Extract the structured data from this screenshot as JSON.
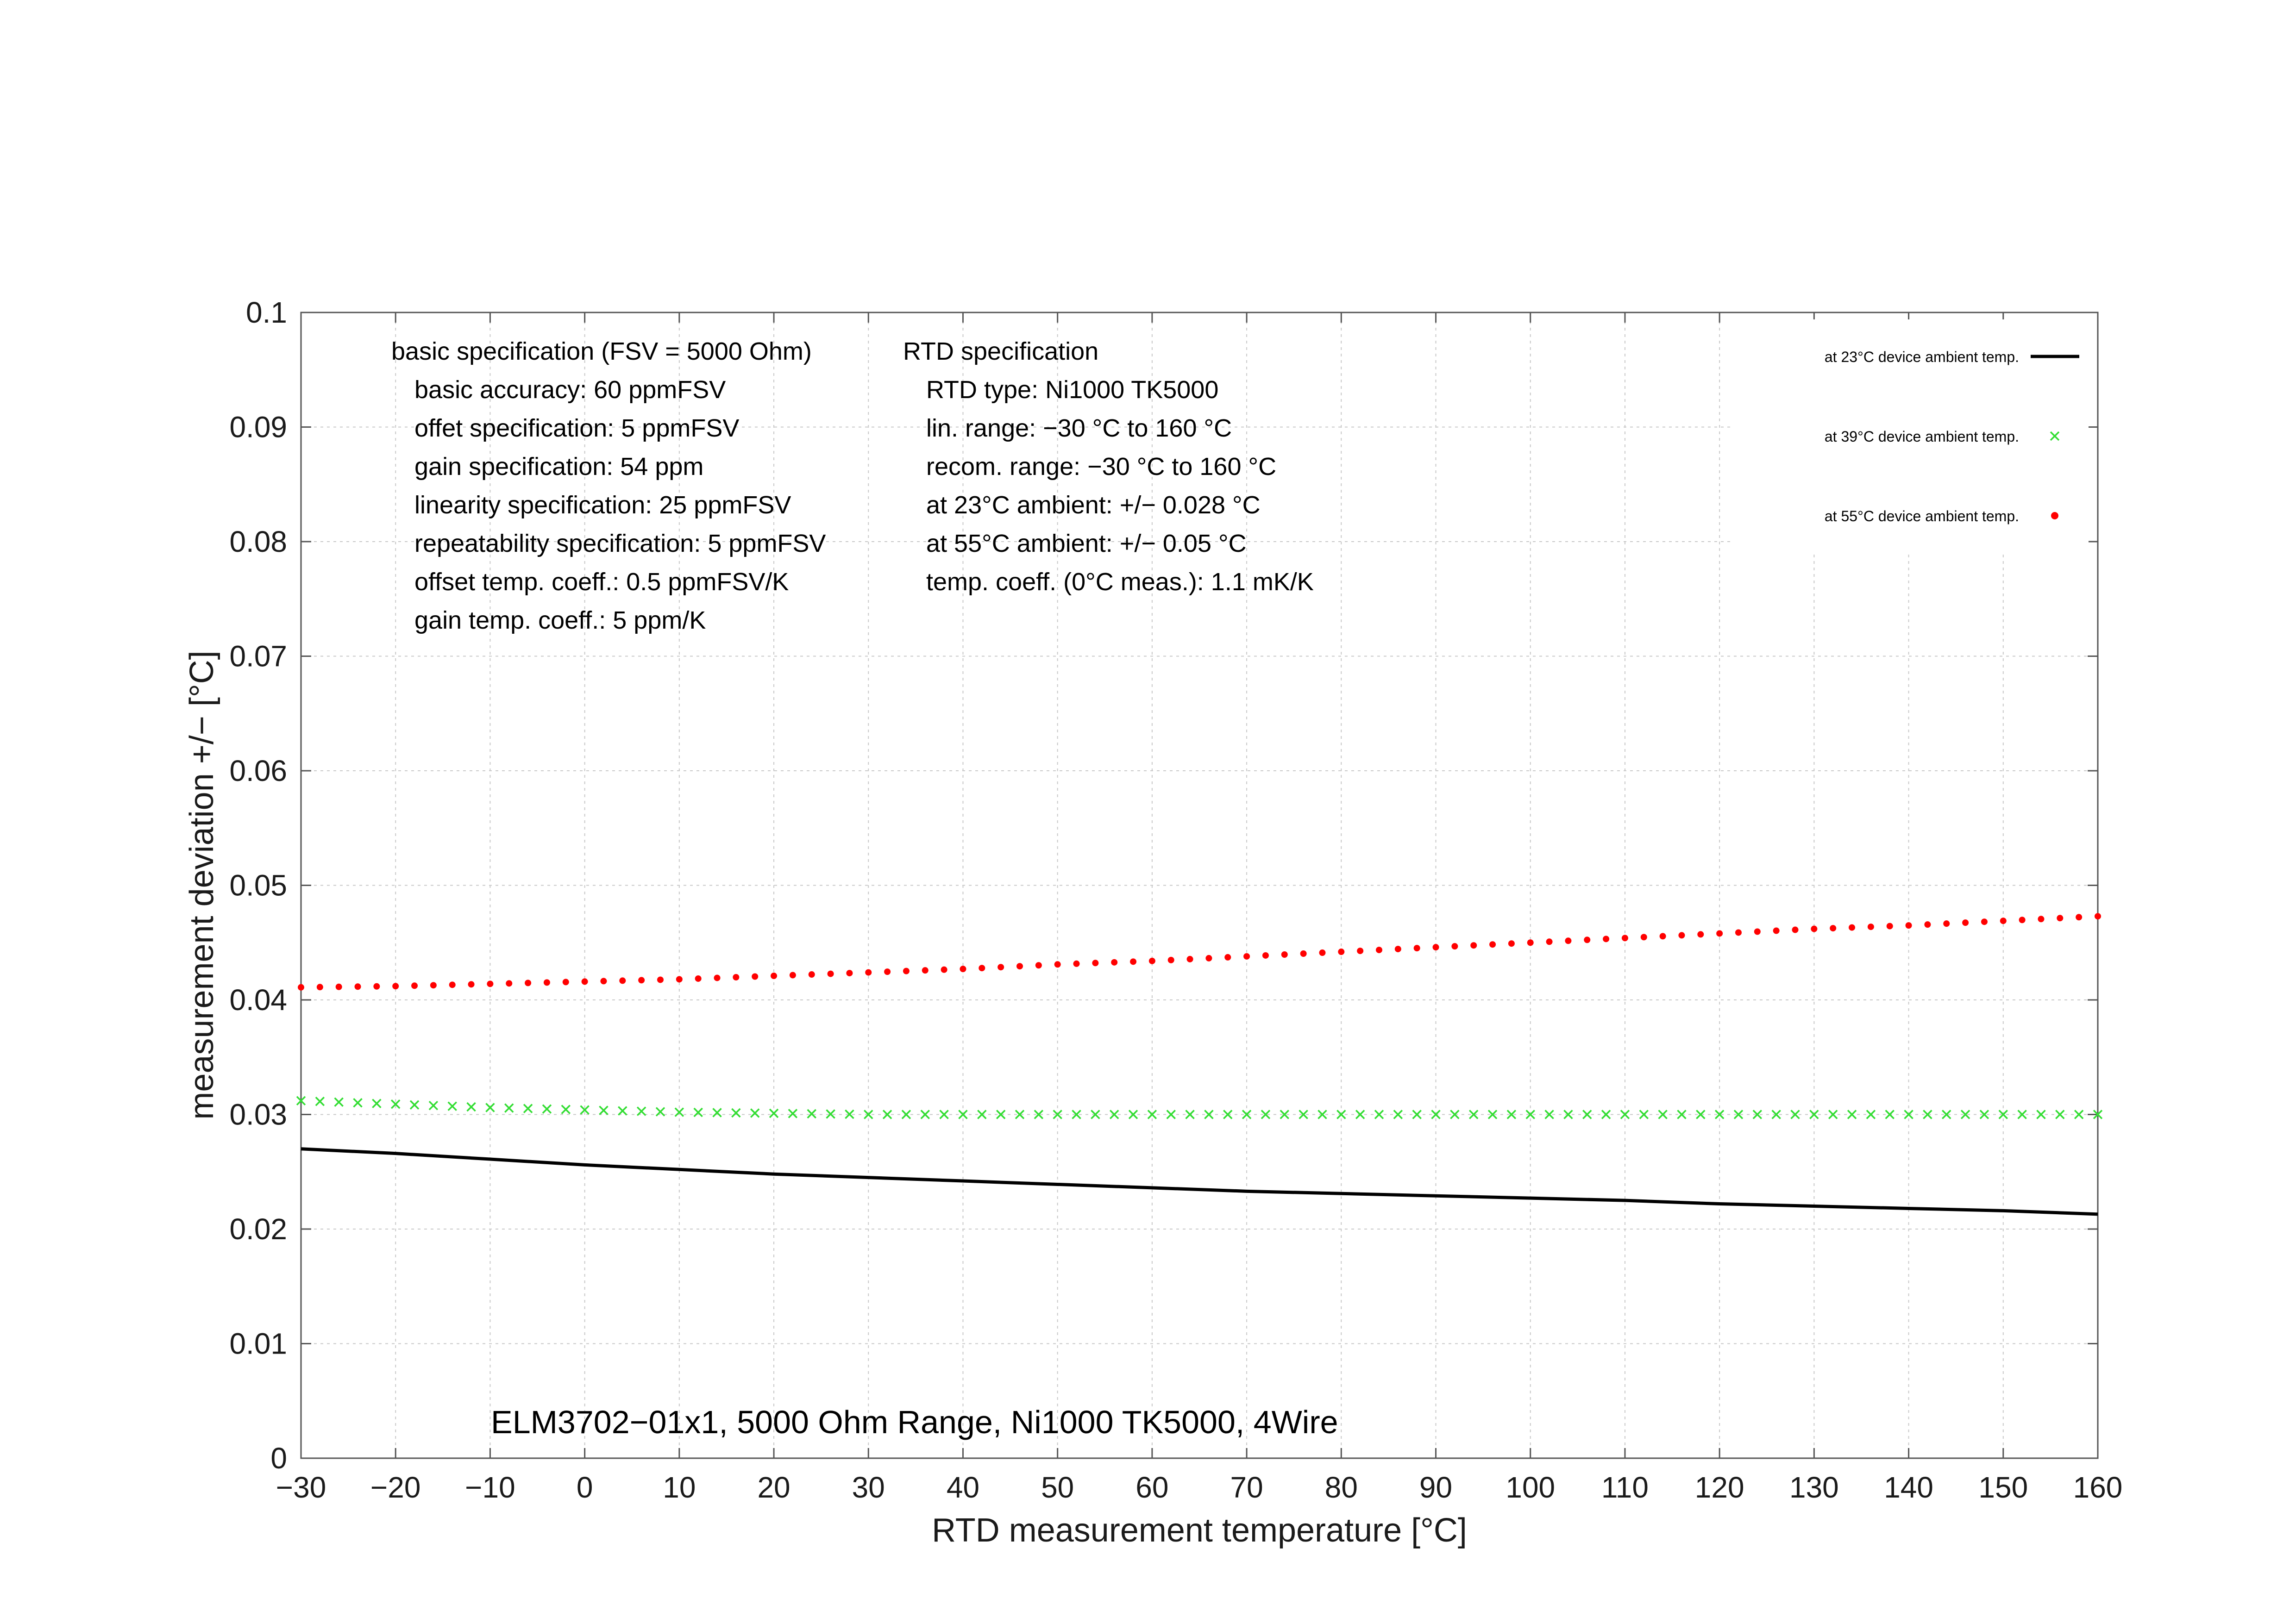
{
  "chart_data": {
    "type": "line",
    "title": "",
    "xlabel": "RTD measurement temperature [°C]",
    "ylabel": "measurement deviation +/− [°C]",
    "xlim": [
      -30,
      160
    ],
    "ylim": [
      0,
      0.1
    ],
    "x_ticks": [
      -30,
      -20,
      -10,
      0,
      10,
      20,
      30,
      40,
      50,
      60,
      70,
      80,
      90,
      100,
      110,
      120,
      130,
      140,
      150,
      160
    ],
    "x_tick_labels": [
      "−30",
      "−20",
      "−10",
      "0",
      "10",
      "20",
      "30",
      "40",
      "50",
      "60",
      "70",
      "80",
      "90",
      "100",
      "110",
      "120",
      "130",
      "140",
      "150",
      "160"
    ],
    "y_ticks": [
      0,
      0.01,
      0.02,
      0.03,
      0.04,
      0.05,
      0.06,
      0.07,
      0.08,
      0.09,
      0.1
    ],
    "y_tick_labels": [
      "0",
      "0.01",
      "0.02",
      "0.03",
      "0.04",
      "0.05",
      "0.06",
      "0.07",
      "0.08",
      "0.09",
      "0.1"
    ],
    "grid": true,
    "legend_position": "top-right",
    "series": [
      {
        "name": "at 23°C device ambient temp.",
        "style": "line",
        "color": "#000000",
        "x": [
          -30,
          -20,
          -10,
          0,
          10,
          20,
          30,
          40,
          50,
          60,
          70,
          80,
          90,
          100,
          110,
          120,
          130,
          140,
          150,
          160
        ],
        "values": [
          0.027,
          0.0266,
          0.0261,
          0.0256,
          0.0252,
          0.0248,
          0.0245,
          0.0242,
          0.0239,
          0.0236,
          0.0233,
          0.0231,
          0.0229,
          0.0227,
          0.0225,
          0.0222,
          0.022,
          0.0218,
          0.0216,
          0.0213
        ]
      },
      {
        "name": "at 39°C device ambient temp.",
        "style": "cross",
        "color": "#33dd33",
        "x": [
          -30,
          -20,
          -10,
          0,
          10,
          20,
          30,
          40,
          50,
          60,
          70,
          80,
          90,
          100,
          110,
          120,
          130,
          140,
          150,
          160
        ],
        "values": [
          0.0312,
          0.0309,
          0.0306,
          0.0304,
          0.0302,
          0.0301,
          0.03,
          0.03,
          0.03,
          0.03,
          0.03,
          0.03,
          0.03,
          0.03,
          0.03,
          0.03,
          0.03,
          0.03,
          0.03,
          0.03
        ]
      },
      {
        "name": "at 55°C device ambient temp.",
        "style": "dot",
        "color": "#ff0000",
        "x": [
          -30,
          -20,
          -10,
          0,
          10,
          20,
          30,
          40,
          50,
          60,
          70,
          80,
          90,
          100,
          110,
          120,
          130,
          140,
          150,
          160
        ],
        "values": [
          0.0411,
          0.0412,
          0.0414,
          0.0416,
          0.0418,
          0.0421,
          0.0424,
          0.0427,
          0.0431,
          0.0434,
          0.0438,
          0.0442,
          0.0446,
          0.045,
          0.0454,
          0.0458,
          0.0462,
          0.0465,
          0.0469,
          0.0473
        ]
      }
    ],
    "annotations": {
      "basic_spec": [
        "basic specification (FSV = 5000 Ohm)",
        "basic accuracy: 60 ppmFSV",
        "offet specification: 5 ppmFSV",
        "gain specification: 54 ppm",
        "linearity specification: 25 ppmFSV",
        "repeatability specification: 5 ppmFSV",
        "offset temp. coeff.: 0.5 ppmFSV/K",
        "gain temp. coeff.: 5 ppm/K"
      ],
      "rtd_spec": [
        "RTD specification",
        "RTD type: Ni1000 TK5000",
        "lin. range: −30 °C to 160 °C",
        "recom. range: −30 °C to 160 °C",
        "at 23°C ambient: +/− 0.028 °C",
        "at 55°C ambient: +/− 0.05 °C",
        "temp. coeff. (0°C meas.): 1.1 mK/K"
      ],
      "device_label": "ELM3702−01x1, 5000 Ohm Range, Ni1000 TK5000, 4Wire"
    }
  }
}
